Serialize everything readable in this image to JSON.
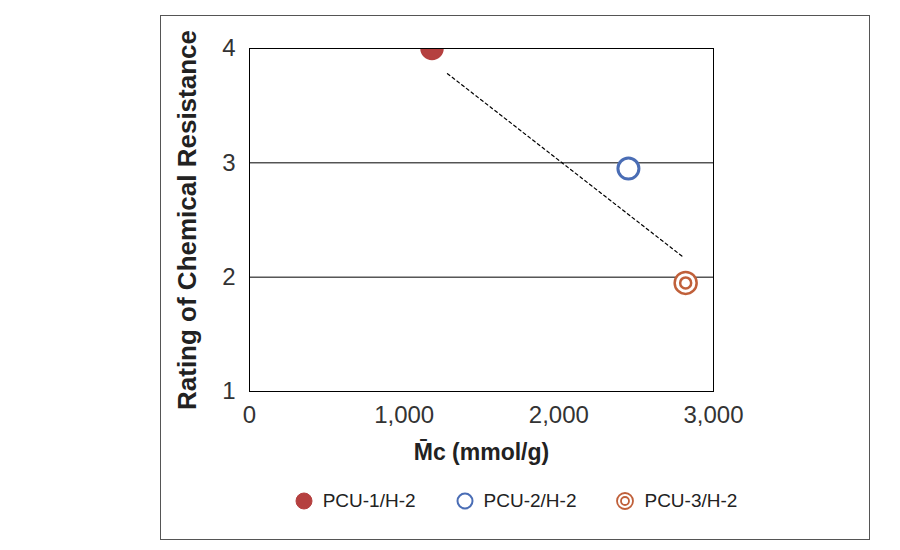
{
  "chart_data": {
    "type": "scatter",
    "xlabel": "M̄c (mmol/g)",
    "ylabel": "Rating of Chemical Resistance",
    "xlim": [
      0,
      3000
    ],
    "ylim": [
      1,
      4
    ],
    "xticks": [
      0,
      {
        "value": 1000,
        "label": "1,000"
      },
      {
        "value": 2000,
        "label": "2,000"
      },
      {
        "value": 3000,
        "label": "3,000"
      }
    ],
    "yticks": [
      1,
      2,
      3,
      4
    ],
    "grid": "y",
    "legend": "bottom",
    "series": [
      {
        "name": "PCU-1/H-2",
        "color": "#b5403f",
        "marker": "filled",
        "x": [
          1180
        ],
        "values": [
          4
        ]
      },
      {
        "name": "PCU-2/H-2",
        "color": "#4a6db5",
        "marker": "open",
        "x": [
          2450
        ],
        "values": [
          2.95
        ]
      },
      {
        "name": "PCU-3/H-2",
        "color": "#c0603a",
        "marker": "double",
        "x": [
          2820
        ],
        "values": [
          1.95
        ]
      }
    ],
    "trendline": {
      "x": [
        1280,
        2800
      ],
      "values": [
        3.78,
        2.18
      ],
      "color": "#000000",
      "line_style": "dashed"
    }
  }
}
